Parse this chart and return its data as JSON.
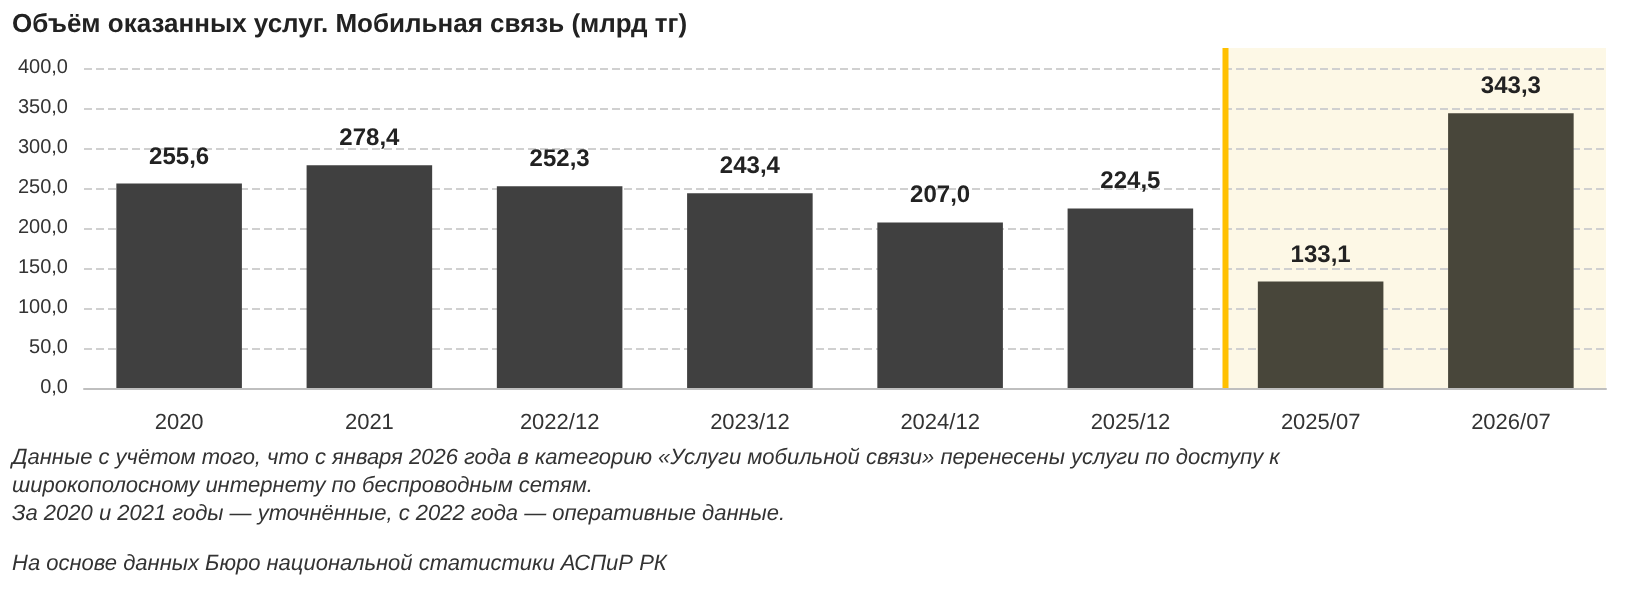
{
  "chart_data": {
    "type": "bar",
    "title": "Объём оказанных услуг. Мобильная связь (млрд тг)",
    "categories": [
      "2020",
      "2021",
      "2022/12",
      "2023/12",
      "2024/12",
      "2025/12",
      "2025/07",
      "2026/07"
    ],
    "values": [
      255.6,
      278.4,
      252.3,
      243.4,
      207.0,
      224.5,
      133.1,
      343.3
    ],
    "colors": [
      "#404040",
      "#404040",
      "#404040",
      "#404040",
      "#404040",
      "#404040",
      "#48463a",
      "#48463a"
    ],
    "value_labels": [
      "255,6",
      "278,4",
      "252,3",
      "243,4",
      "207,0",
      "224,5",
      "133,1",
      "343,3"
    ],
    "ylim": [
      0,
      400
    ],
    "yticks": [
      {
        "value": 0,
        "label": "0,0"
      },
      {
        "value": 50,
        "label": "50,0"
      },
      {
        "value": 100,
        "label": "100,0"
      },
      {
        "value": 150,
        "label": "150,0"
      },
      {
        "value": 200,
        "label": "200,0"
      },
      {
        "value": 250,
        "label": "250,0"
      },
      {
        "value": 300,
        "label": "300,0"
      },
      {
        "value": 350,
        "label": "350,0"
      },
      {
        "value": 400,
        "label": "400,0"
      }
    ],
    "grid": "y",
    "bands": [
      {
        "axis": "x",
        "from": "2025/07",
        "to": "2026/07",
        "color": "#fdf8e6"
      }
    ],
    "ref_lines": [
      {
        "axis": "x",
        "value": "2025/07",
        "color": "#ffc000"
      }
    ],
    "annotations": [
      "Данные с учётом того, что с января 2026 года в категорию «Услуги мобильной связи» перенесены услуги по доступу к широкополосному интернету по беспроводным сетям.",
      "За 2020 и 2021 годы — уточнённые, с 2022 года — оперативные данные.",
      "На основе данных Бюро национальной статистики АСПиР РК"
    ]
  }
}
